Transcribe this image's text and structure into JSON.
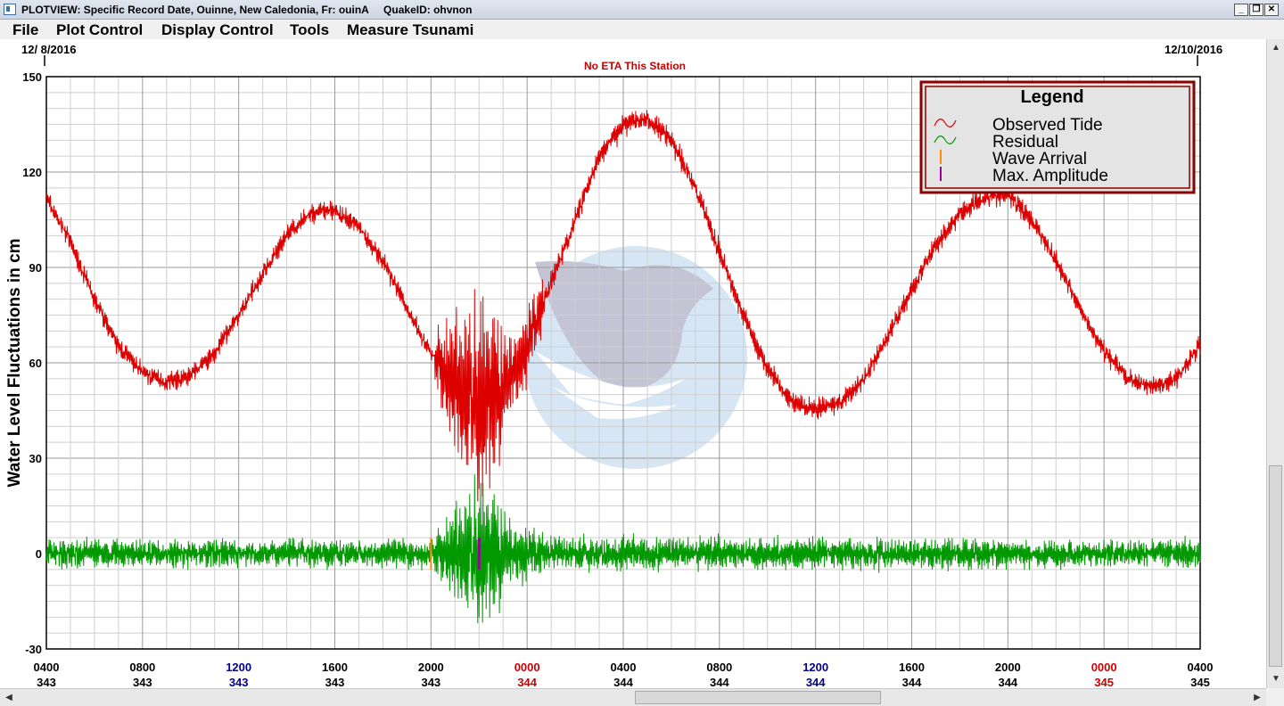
{
  "window": {
    "title": "PLOTVIEW: Specific Record Date, Ouinne, New Caledonia, Fr: ouinA     QuakeID: ohvnon",
    "minimize_glyph": "_",
    "restore_glyph": "❐",
    "close_glyph": "✕"
  },
  "menu": [
    {
      "label": "File"
    },
    {
      "label": "Plot Control"
    },
    {
      "label": "Display Control"
    },
    {
      "label": "Tools"
    },
    {
      "label": "Measure Tsunami"
    }
  ],
  "chart_data": {
    "type": "line",
    "eta_text": "No ETA This Station",
    "start_date": "12/ 8/2016",
    "end_date": "12/10/2016",
    "ylabel": "Water Level Fluctuations in cm",
    "ylim": [
      -30,
      150
    ],
    "y_ticks": [
      -30,
      0,
      30,
      60,
      90,
      120,
      150
    ],
    "xlim_hours": [
      4,
      52
    ],
    "x_ticks": [
      {
        "time": "0400",
        "day": "343",
        "color": "#000000"
      },
      {
        "time": "0800",
        "day": "343",
        "color": "#000000"
      },
      {
        "time": "1200",
        "day": "343",
        "color": "#00008b"
      },
      {
        "time": "1600",
        "day": "343",
        "color": "#000000"
      },
      {
        "time": "2000",
        "day": "343",
        "color": "#000000"
      },
      {
        "time": "0000",
        "day": "344",
        "color": "#cc0000"
      },
      {
        "time": "0400",
        "day": "344",
        "color": "#000000"
      },
      {
        "time": "0800",
        "day": "344",
        "color": "#000000"
      },
      {
        "time": "1200",
        "day": "344",
        "color": "#00008b"
      },
      {
        "time": "1600",
        "day": "344",
        "color": "#000000"
      },
      {
        "time": "2000",
        "day": "344",
        "color": "#000000"
      },
      {
        "time": "0000",
        "day": "345",
        "color": "#cc0000"
      },
      {
        "time": "0400",
        "day": "345",
        "color": "#000000"
      }
    ],
    "grid": true,
    "legend": {
      "title": "Legend",
      "position": "top-right",
      "entries": [
        {
          "label": "Observed Tide",
          "color": "#dd0000",
          "symbol": "wave"
        },
        {
          "label": "Residual",
          "color": "#009900",
          "symbol": "wave"
        },
        {
          "label": "Wave Arrival",
          "color": "#ff8c00",
          "symbol": "bar"
        },
        {
          "label": "Max. Amplitude",
          "color": "#990099",
          "symbol": "bar"
        }
      ]
    },
    "series": [
      {
        "name": "Observed Tide",
        "color": "#dd0000",
        "noise_cm": 3,
        "x": [
          4,
          5,
          6,
          7,
          8,
          9,
          10,
          11,
          12,
          13,
          14,
          15,
          16,
          17,
          18,
          19,
          20,
          21,
          22,
          23,
          24,
          25,
          26,
          27,
          28,
          29,
          30,
          31,
          32,
          33,
          34,
          35,
          36,
          37,
          38,
          39,
          40,
          41,
          42,
          43,
          44,
          45,
          46,
          47,
          48,
          49,
          50,
          51,
          52
        ],
        "y": [
          112,
          98,
          80,
          65,
          57,
          54,
          56,
          63,
          75,
          88,
          100,
          107,
          108,
          103,
          92,
          77,
          63,
          53,
          48,
          52,
          65,
          85,
          105,
          125,
          135,
          137,
          130,
          115,
          95,
          75,
          58,
          48,
          45,
          47,
          55,
          68,
          83,
          97,
          107,
          112,
          113,
          105,
          92,
          77,
          64,
          55,
          52,
          55,
          66
        ]
      },
      {
        "name": "Residual",
        "color": "#009900",
        "x": [
          4,
          20,
          20.5,
          21,
          21.5,
          22,
          22.5,
          23,
          23.5,
          24,
          25,
          52
        ],
        "amplitude": [
          4,
          4,
          10,
          16,
          22,
          25,
          20,
          14,
          10,
          8,
          5,
          4
        ]
      }
    ],
    "wave_arrival": {
      "x_hour": 20.0,
      "ymin": -5,
      "ymax": 5
    },
    "max_amplitude": {
      "x_hour": 22.0,
      "ymin": -5,
      "ymax": 5
    }
  }
}
